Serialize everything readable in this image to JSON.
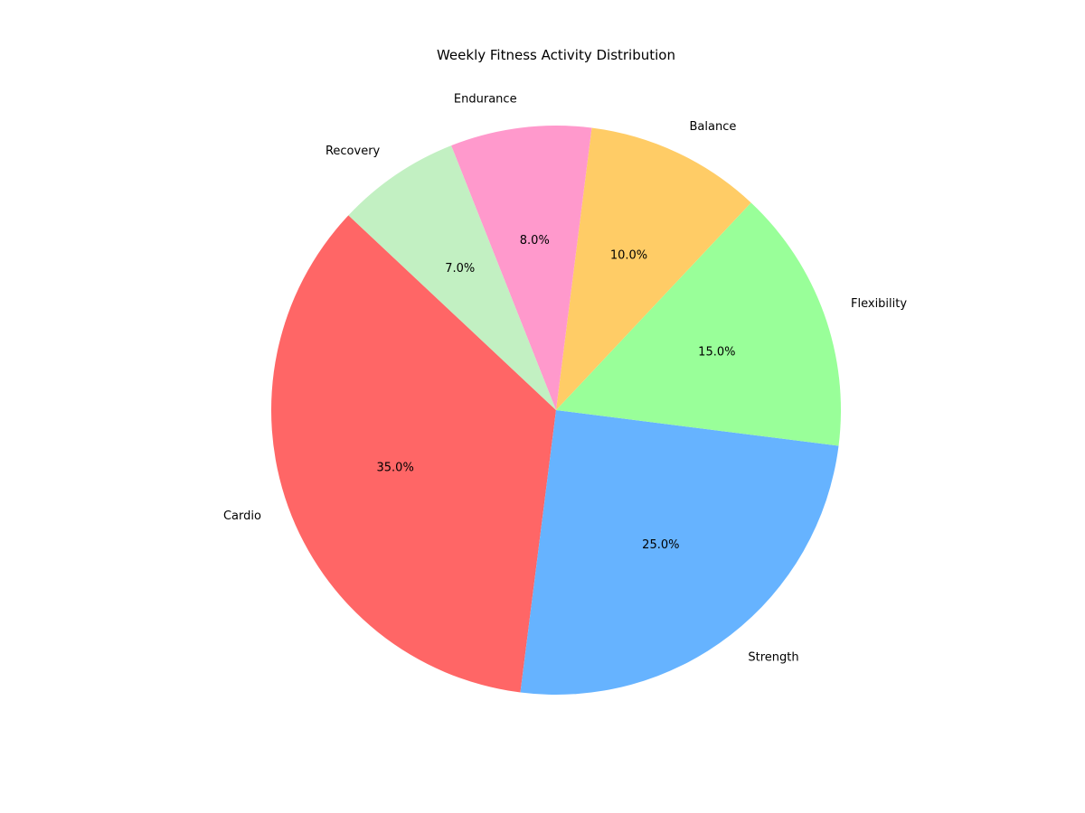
{
  "chart_data": {
    "type": "pie",
    "title": "Weekly Fitness Activity Distribution",
    "start_angle_deg": 136.8,
    "direction": "counterclockwise",
    "slices": [
      {
        "label": "Cardio",
        "value": 35.0,
        "pct_label": "35.0%",
        "color": "#ff6666"
      },
      {
        "label": "Strength",
        "value": 25.0,
        "pct_label": "25.0%",
        "color": "#66b3ff"
      },
      {
        "label": "Flexibility",
        "value": 15.0,
        "pct_label": "15.0%",
        "color": "#99ff99"
      },
      {
        "label": "Balance",
        "value": 10.0,
        "pct_label": "10.0%",
        "color": "#ffcc66"
      },
      {
        "label": "Endurance",
        "value": 8.0,
        "pct_label": "8.0%",
        "color": "#ff99cc"
      },
      {
        "label": "Recovery",
        "value": 7.0,
        "pct_label": "7.0%",
        "color": "#c2f0c2"
      }
    ]
  }
}
